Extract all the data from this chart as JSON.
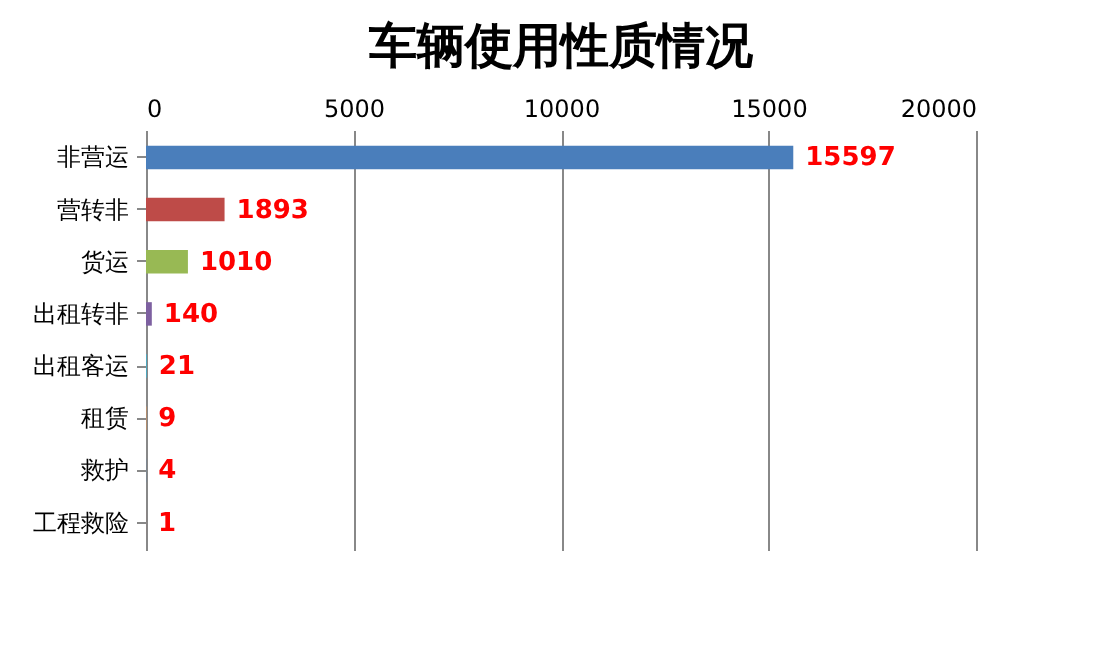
{
  "chart_data": {
    "type": "bar",
    "orientation": "horizontal",
    "title": "车辆使用性质情况",
    "categories": [
      "非营运",
      "营转非",
      "货运",
      "出租转非",
      "出租客运",
      "租赁",
      "救护",
      "工程救险"
    ],
    "values": [
      15597,
      1893,
      1010,
      140,
      21,
      9,
      4,
      1
    ],
    "colors": [
      "#4a7ebb",
      "#be4b48",
      "#98b954",
      "#7d60a0",
      "#46aac5",
      "#f79646",
      "#4a7ebb",
      "#be4b48"
    ],
    "xlim": [
      0,
      20000
    ],
    "xticks": [
      0,
      5000,
      10000,
      15000,
      20000
    ],
    "grid": "x",
    "data_labels": true
  }
}
